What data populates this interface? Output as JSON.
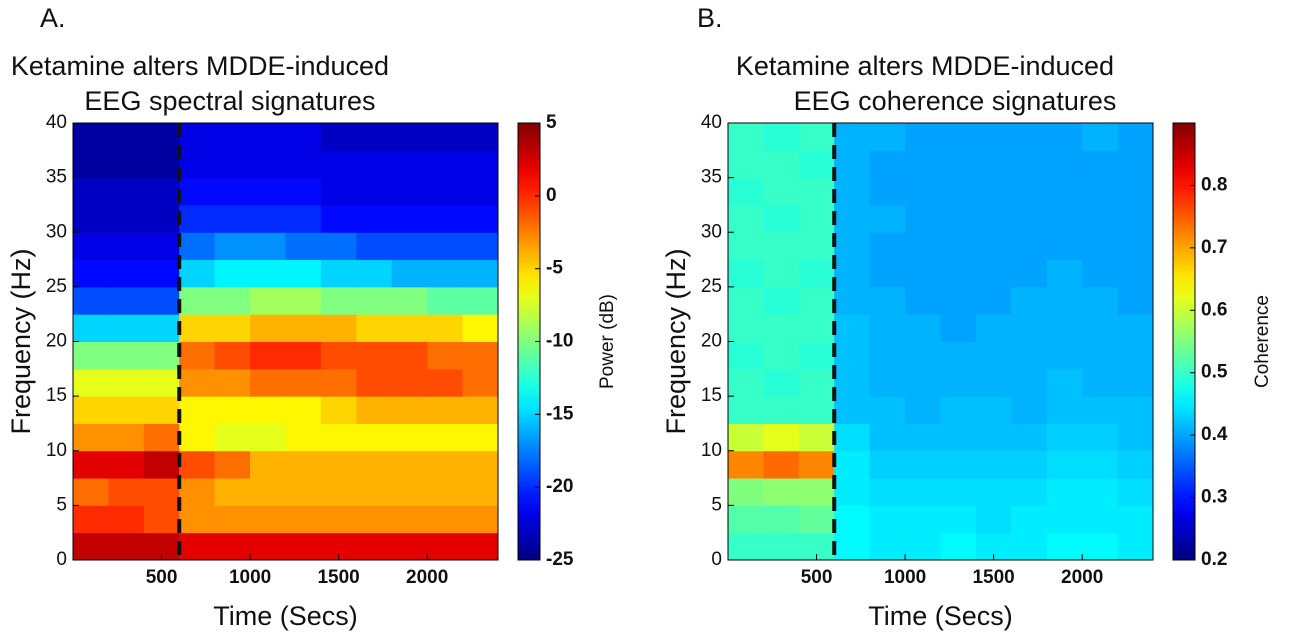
{
  "chart_data": [
    {
      "type": "heatmap",
      "panel_label": "A.",
      "title": [
        "Ketamine alters MDDE-induced",
        "EEG spectral signatures"
      ],
      "x_label": "Time (Secs)",
      "y_label": "Frequency (Hz)",
      "colorbar_label": "Power (dB)",
      "colormap": "jet",
      "xlim": [
        0,
        2400
      ],
      "xticks": [
        500,
        1000,
        1500,
        2000
      ],
      "ylim": [
        0,
        40
      ],
      "yticks": [
        0,
        5,
        10,
        15,
        20,
        25,
        30,
        35,
        40
      ],
      "clim": [
        -25,
        5
      ],
      "cticks": [
        5,
        0,
        -5,
        -10,
        -15,
        -20,
        -25
      ],
      "vline": 600,
      "xbins": [
        0,
        200,
        400,
        600,
        800,
        1000,
        1200,
        1400,
        1600,
        1800,
        2000,
        2200,
        2400
      ],
      "ybins": [
        0,
        2.5,
        5,
        7.5,
        10,
        12.5,
        15,
        17.5,
        20,
        22.5,
        25,
        27.5,
        30,
        32.5,
        35,
        37.5,
        40
      ],
      "values": [
        [
          3,
          3,
          3,
          2,
          2,
          2,
          2,
          2,
          2,
          2,
          2,
          2
        ],
        [
          0,
          0,
          -1,
          -3,
          -3,
          -3,
          -3,
          -3,
          -3,
          -3,
          -3,
          -3
        ],
        [
          -2,
          -1,
          -1,
          -3,
          -4,
          -4,
          -4,
          -4,
          -4,
          -4,
          -4,
          -4
        ],
        [
          2,
          2,
          3,
          -1,
          -2,
          -4,
          -4,
          -4,
          -4,
          -4,
          -4,
          -4
        ],
        [
          -3,
          -3,
          -2,
          -6,
          -7,
          -7,
          -6,
          -6,
          -6,
          -6,
          -6,
          -6
        ],
        [
          -5,
          -5,
          -5,
          -6,
          -6,
          -6,
          -6,
          -5,
          -4,
          -4,
          -4,
          -4
        ],
        [
          -7,
          -7,
          -7,
          -3,
          -3,
          -2,
          -2,
          -2,
          -1,
          -1,
          -1,
          -2
        ],
        [
          -10,
          -10,
          -10,
          -2,
          -1,
          0,
          0,
          -1,
          -1,
          -1,
          -2,
          -2
        ],
        [
          -15,
          -15,
          -15,
          -5,
          -5,
          -4,
          -4,
          -4,
          -5,
          -5,
          -5,
          -6
        ],
        [
          -19,
          -19,
          -19,
          -10,
          -10,
          -9,
          -9,
          -10,
          -10,
          -10,
          -11,
          -11
        ],
        [
          -21,
          -21,
          -21,
          -15,
          -14,
          -14,
          -14,
          -15,
          -15,
          -16,
          -16,
          -16
        ],
        [
          -22,
          -22,
          -22,
          -18,
          -17,
          -17,
          -18,
          -18,
          -19,
          -19,
          -19,
          -19
        ],
        [
          -23,
          -23,
          -23,
          -20,
          -20,
          -20,
          -20,
          -21,
          -21,
          -21,
          -21,
          -21
        ],
        [
          -23,
          -23,
          -23,
          -21,
          -21,
          -21,
          -21,
          -22,
          -22,
          -22,
          -22,
          -22
        ],
        [
          -24,
          -24,
          -24,
          -22,
          -22,
          -22,
          -22,
          -22,
          -22,
          -22,
          -22,
          -22
        ],
        [
          -24,
          -24,
          -24,
          -22,
          -22,
          -22,
          -22,
          -23,
          -23,
          -23,
          -23,
          -23
        ]
      ]
    },
    {
      "type": "heatmap",
      "panel_label": "B.",
      "title": [
        "Ketamine alters MDDE-induced",
        "EEG coherence signatures"
      ],
      "x_label": "Time (Secs)",
      "y_label": "Frequency (Hz)",
      "colorbar_label": "Coherence",
      "colormap": "jet",
      "xlim": [
        0,
        2400
      ],
      "xticks": [
        500,
        1000,
        1500,
        2000
      ],
      "ylim": [
        0,
        40
      ],
      "yticks": [
        0,
        5,
        10,
        15,
        20,
        25,
        30,
        35,
        40
      ],
      "clim": [
        0.2,
        0.9
      ],
      "cticks": [
        0.8,
        0.7,
        0.6,
        0.5,
        0.4,
        0.3,
        0.2
      ],
      "vline": 600,
      "xbins": [
        0,
        200,
        400,
        600,
        800,
        1000,
        1200,
        1400,
        1600,
        1800,
        2000,
        2200,
        2400
      ],
      "ybins": [
        0,
        2.5,
        5,
        7.5,
        10,
        12.5,
        15,
        17.5,
        20,
        22.5,
        25,
        27.5,
        30,
        32.5,
        35,
        37.5,
        40
      ],
      "values": [
        [
          0.5,
          0.5,
          0.5,
          0.46,
          0.45,
          0.45,
          0.46,
          0.45,
          0.45,
          0.46,
          0.46,
          0.45
        ],
        [
          0.52,
          0.52,
          0.53,
          0.46,
          0.45,
          0.45,
          0.45,
          0.44,
          0.45,
          0.45,
          0.45,
          0.45
        ],
        [
          0.55,
          0.56,
          0.56,
          0.45,
          0.44,
          0.44,
          0.44,
          0.44,
          0.44,
          0.45,
          0.45,
          0.44
        ],
        [
          0.72,
          0.74,
          0.72,
          0.45,
          0.43,
          0.43,
          0.43,
          0.43,
          0.43,
          0.44,
          0.44,
          0.43
        ],
        [
          0.6,
          0.62,
          0.6,
          0.44,
          0.42,
          0.42,
          0.42,
          0.42,
          0.42,
          0.43,
          0.43,
          0.42
        ],
        [
          0.5,
          0.5,
          0.5,
          0.42,
          0.42,
          0.41,
          0.42,
          0.42,
          0.41,
          0.42,
          0.42,
          0.42
        ],
        [
          0.5,
          0.49,
          0.5,
          0.42,
          0.41,
          0.41,
          0.41,
          0.41,
          0.41,
          0.42,
          0.41,
          0.41
        ],
        [
          0.49,
          0.5,
          0.49,
          0.42,
          0.41,
          0.41,
          0.41,
          0.41,
          0.41,
          0.41,
          0.41,
          0.41
        ],
        [
          0.5,
          0.5,
          0.5,
          0.42,
          0.41,
          0.41,
          0.4,
          0.41,
          0.41,
          0.41,
          0.41,
          0.41
        ],
        [
          0.5,
          0.49,
          0.5,
          0.41,
          0.41,
          0.4,
          0.4,
          0.4,
          0.41,
          0.41,
          0.41,
          0.4
        ],
        [
          0.49,
          0.5,
          0.49,
          0.41,
          0.4,
          0.4,
          0.4,
          0.4,
          0.4,
          0.41,
          0.4,
          0.4
        ],
        [
          0.5,
          0.5,
          0.5,
          0.41,
          0.4,
          0.4,
          0.4,
          0.4,
          0.4,
          0.4,
          0.4,
          0.4
        ],
        [
          0.5,
          0.49,
          0.5,
          0.41,
          0.41,
          0.4,
          0.4,
          0.4,
          0.4,
          0.4,
          0.4,
          0.4
        ],
        [
          0.49,
          0.5,
          0.5,
          0.41,
          0.4,
          0.4,
          0.4,
          0.4,
          0.4,
          0.4,
          0.4,
          0.4
        ],
        [
          0.5,
          0.5,
          0.49,
          0.41,
          0.4,
          0.4,
          0.4,
          0.4,
          0.4,
          0.4,
          0.4,
          0.4
        ],
        [
          0.5,
          0.49,
          0.5,
          0.41,
          0.41,
          0.4,
          0.4,
          0.4,
          0.4,
          0.4,
          0.41,
          0.4
        ]
      ]
    }
  ]
}
